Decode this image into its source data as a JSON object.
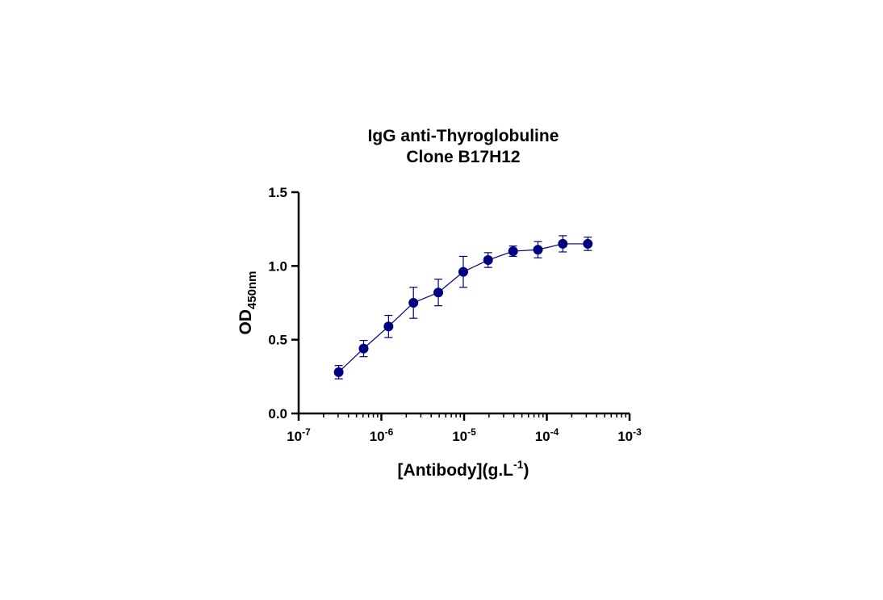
{
  "chart_data": {
    "type": "scatter",
    "title": [
      "IgG anti-Thyroglobuline",
      "Clone B17H12"
    ],
    "xlabel": {
      "main": "[Antibody](g.L",
      "sup": "-1",
      "tail": ")"
    },
    "ylabel": {
      "main": "OD",
      "sub": "450nm"
    },
    "xscale": "log",
    "xlim": [
      1e-07,
      0.001
    ],
    "ylim": [
      0,
      1.5
    ],
    "xticks": [
      {
        "base": "10",
        "exp": "-7"
      },
      {
        "base": "10",
        "exp": "-6"
      },
      {
        "base": "10",
        "exp": "-5"
      },
      {
        "base": "10",
        "exp": "-4"
      },
      {
        "base": "10",
        "exp": "-3"
      }
    ],
    "yticks": [
      "0.0",
      "0.5",
      "1.0",
      "1.5"
    ],
    "yticks_values": [
      0,
      0.5,
      1.0,
      1.5
    ],
    "grid": false,
    "color": "#000080",
    "series": [
      {
        "x": [
          3.05e-07,
          6.1e-07,
          1.22e-06,
          2.44e-06,
          4.88e-06,
          9.77e-06,
          1.95e-05,
          3.91e-05,
          7.81e-05,
          0.000156,
          0.000313
        ],
        "y": [
          0.28,
          0.44,
          0.59,
          0.75,
          0.82,
          0.96,
          1.04,
          1.1,
          1.11,
          1.15,
          1.15
        ],
        "error": [
          0.045,
          0.055,
          0.075,
          0.105,
          0.09,
          0.105,
          0.05,
          0.035,
          0.055,
          0.055,
          0.045
        ]
      }
    ]
  }
}
